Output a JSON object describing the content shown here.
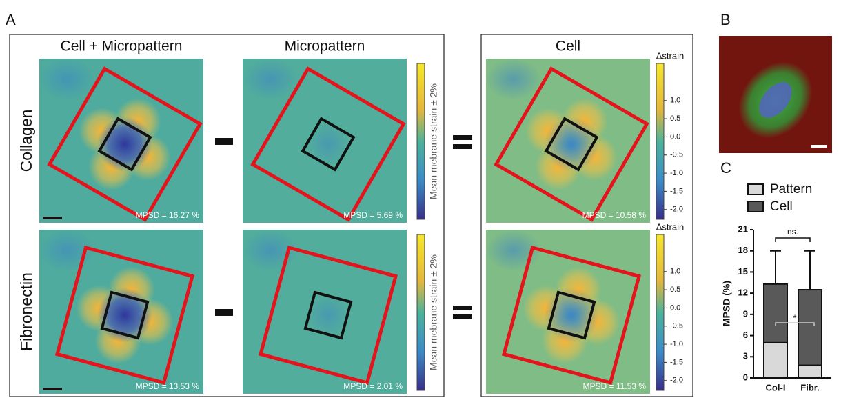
{
  "labels": {
    "a": "A",
    "b": "B",
    "c": "C"
  },
  "columns": [
    "Cell + Micropattern",
    "Micropattern",
    "Cell"
  ],
  "rows": [
    "Collagen",
    "Fibronectin"
  ],
  "mpsd": [
    [
      "MPSD = 16.27 %",
      "MPSD = 5.69 %",
      "MPSD = 10.58 %"
    ],
    [
      "MPSD = 13.53 %",
      "MPSD = 2.01 %",
      "MPSD = 11.53 %"
    ]
  ],
  "strain_label": "Mean mebrane strain ± 2%",
  "colorbar": {
    "label": "Δstrain",
    "lim": [
      -2.27,
      2.02
    ],
    "ticks": [
      {
        "value": 1,
        "label": "1.0"
      },
      0.5,
      {
        "value": 0,
        "label": "0.0"
      },
      -0.5,
      {
        "value": -1,
        "label": "-1.0"
      },
      -1.5,
      {
        "value": -2,
        "label": "-2.0"
      }
    ]
  },
  "chart_data": {
    "type": "stacked-bar",
    "ylabel": "MPSD (%)",
    "categories": [
      "Col-I",
      "Fibr."
    ],
    "series": [
      {
        "name": "Pattern",
        "color": "#d9d9d9",
        "values": [
          5,
          1.8
        ],
        "errors": [
          1.8,
          1.7
        ]
      },
      {
        "name": "Cell",
        "color": "#595959",
        "values": [
          8.3,
          10.7
        ],
        "errors": [
          4.7,
          5.5
        ]
      }
    ],
    "ylim": [
      0,
      21
    ],
    "yticks": [
      0,
      3,
      6,
      9,
      12,
      15,
      18,
      21
    ],
    "annotations": [
      "ns.",
      "*"
    ]
  }
}
